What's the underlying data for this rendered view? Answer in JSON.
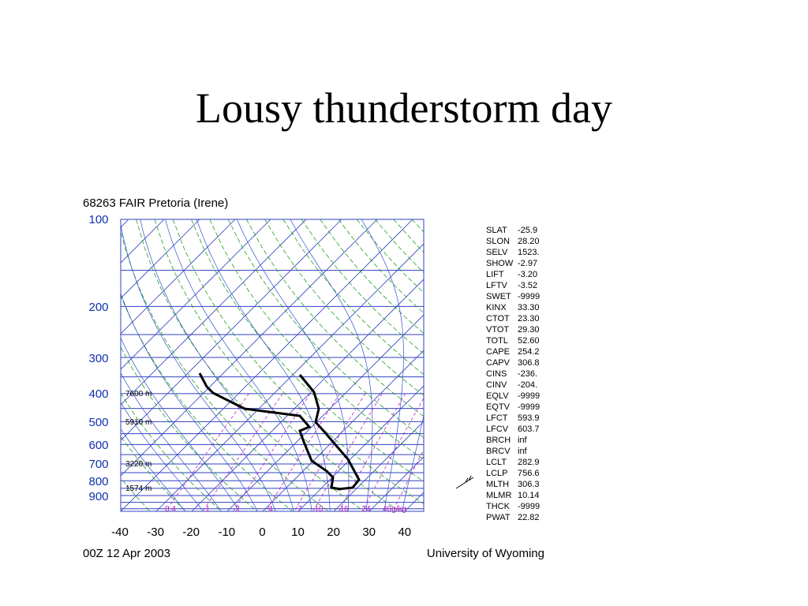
{
  "slide_title": "Lousy thunderstorm day",
  "figure": {
    "header": "68263 FAIR Pretoria (Irene)",
    "pressure_labels": [
      "100",
      "200",
      "300",
      "400",
      "500",
      "600",
      "700",
      "800",
      "900"
    ],
    "height_labels": [
      "7600 m",
      "5910 m",
      "3220 m",
      "1574 m"
    ],
    "mixing_ratio_labels": [
      "0.4",
      "1",
      "2",
      "4",
      "7",
      "10",
      "16",
      "24",
      "40g/kg"
    ],
    "temperature_labels": [
      "-40",
      "-30",
      "-20",
      "-10",
      "0",
      "10",
      "20",
      "30",
      "40"
    ],
    "indices": [
      [
        "SLAT",
        "-25.9"
      ],
      [
        "SLON",
        "28.20"
      ],
      [
        "SELV",
        "1523."
      ],
      [
        "SHOW",
        "-2.97"
      ],
      [
        "LIFT",
        "-3.20"
      ],
      [
        "LFTV",
        "-3.52"
      ],
      [
        "SWET",
        "-9999"
      ],
      [
        "KINX",
        "33.30"
      ],
      [
        "CTOT",
        "23.30"
      ],
      [
        "VTOT",
        "29.30"
      ],
      [
        "TOTL",
        "52.60"
      ],
      [
        "CAPE",
        "254.2"
      ],
      [
        "CAPV",
        "306.8"
      ],
      [
        "CINS",
        "-236."
      ],
      [
        "CINV",
        "-204."
      ],
      [
        "EQLV",
        "-9999"
      ],
      [
        "EQTV",
        "-9999"
      ],
      [
        "LFCT",
        "593.9"
      ],
      [
        "LFCV",
        "603.7"
      ],
      [
        "BRCH",
        "inf"
      ],
      [
        "BRCV",
        "inf"
      ],
      [
        "LCLT",
        "282.9"
      ],
      [
        "LCLP",
        "756.6"
      ],
      [
        "MLTH",
        "306.3"
      ],
      [
        "MLMR",
        "10.14"
      ],
      [
        "THCK",
        "-9999"
      ],
      [
        "PWAT",
        "22.82"
      ]
    ],
    "footer_left": "00Z 12 Apr 2003",
    "footer_right": "University of Wyoming"
  }
}
